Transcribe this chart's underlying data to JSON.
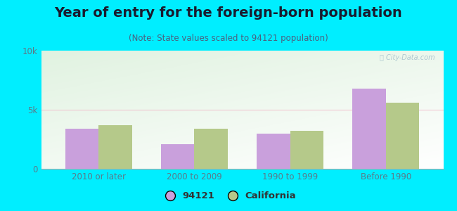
{
  "title": "Year of entry for the foreign-born population",
  "subtitle": "(Note: State values scaled to 94121 population)",
  "categories": [
    "2010 or later",
    "2000 to 2009",
    "1990 to 1999",
    "Before 1990"
  ],
  "values_94121": [
    3400,
    2100,
    3000,
    6800
  ],
  "values_california": [
    3700,
    3400,
    3200,
    5600
  ],
  "bar_color_94121": "#c9a0dc",
  "bar_color_california": "#b5c98a",
  "background_outer": "#00eeff",
  "ylim": [
    0,
    10000
  ],
  "ytick_labels": [
    "0",
    "5k",
    "10k"
  ],
  "legend_label_94121": "94121",
  "legend_label_california": "California",
  "gridline_color": "#f0b8c8",
  "bar_width": 0.35,
  "title_fontsize": 14,
  "subtitle_fontsize": 8.5,
  "tick_fontsize": 8.5,
  "legend_fontsize": 9.5,
  "title_color": "#1a1a2e",
  "subtitle_color": "#4a6080",
  "tick_color": "#5a7a8a"
}
